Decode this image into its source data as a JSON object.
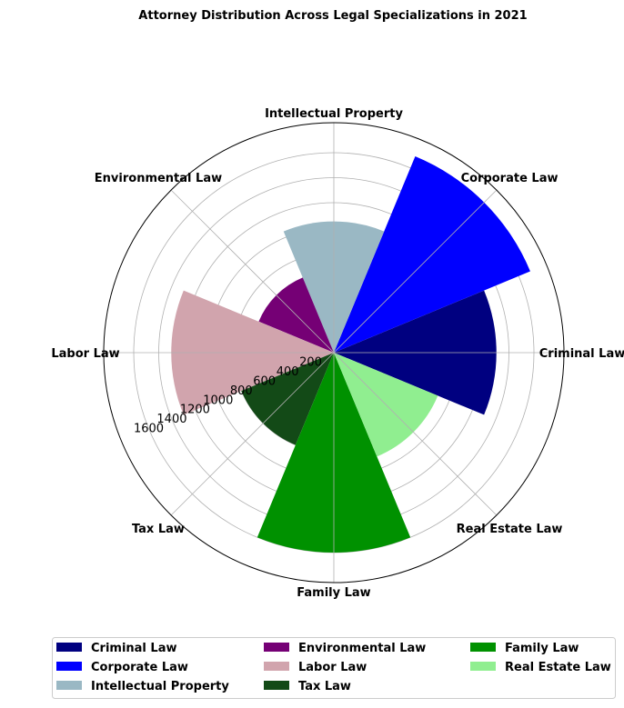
{
  "chart_data": {
    "type": "polar-bar",
    "title": "Attorney Distribution Across Legal Specializations in 2021",
    "categories": [
      "Criminal Law",
      "Corporate Law",
      "Intellectual Property",
      "Environmental Law",
      "Labor Law",
      "Tax Law",
      "Family Law",
      "Real Estate Law"
    ],
    "values": [
      1300,
      1700,
      1050,
      650,
      1300,
      800,
      1600,
      900
    ],
    "colors": [
      "#000080",
      "#0000FF",
      "#9AB8C4",
      "#750075",
      "#D1A4AD",
      "#134A17",
      "#009100",
      "#90EE90"
    ],
    "r_ticks": [
      200,
      400,
      600,
      800,
      1000,
      1200,
      1400,
      1600
    ],
    "r_max": 1840,
    "grid": true,
    "legend": {
      "position": "bottom-center",
      "columns": 3
    }
  }
}
